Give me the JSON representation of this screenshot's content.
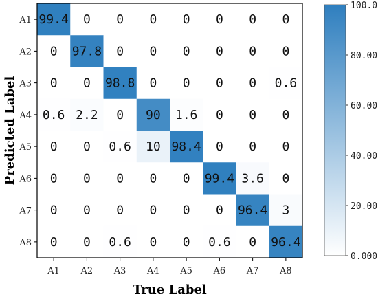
{
  "chart_data": {
    "type": "heatmap",
    "xlabel": "True Label",
    "ylabel": "Predicted Label",
    "x_categories": [
      "A1",
      "A2",
      "A3",
      "A4",
      "A5",
      "A6",
      "A7",
      "A8"
    ],
    "y_categories": [
      "A1",
      "A2",
      "A3",
      "A4",
      "A5",
      "A6",
      "A7",
      "A8"
    ],
    "values": [
      [
        99.4,
        0,
        0,
        0,
        0,
        0,
        0,
        0
      ],
      [
        0,
        97.8,
        0,
        0,
        0,
        0,
        0,
        0
      ],
      [
        0,
        0,
        98.8,
        0,
        0,
        0,
        0,
        0.6
      ],
      [
        0.6,
        2.2,
        0,
        90,
        1.6,
        0,
        0,
        0
      ],
      [
        0,
        0,
        0.6,
        10,
        98.4,
        0,
        0,
        0
      ],
      [
        0,
        0,
        0,
        0,
        0,
        99.4,
        3.6,
        0
      ],
      [
        0,
        0,
        0,
        0,
        0,
        0,
        96.4,
        3
      ],
      [
        0,
        0,
        0.6,
        0,
        0,
        0.6,
        0,
        96.4
      ]
    ],
    "colorbar": {
      "range": [
        0,
        100
      ],
      "tick_labels": [
        "0.000",
        "20.00",
        "40.00",
        "60.00",
        "80.00",
        "100.0"
      ],
      "color_low": "#ffffff",
      "color_high": "#2f7fbf"
    }
  }
}
